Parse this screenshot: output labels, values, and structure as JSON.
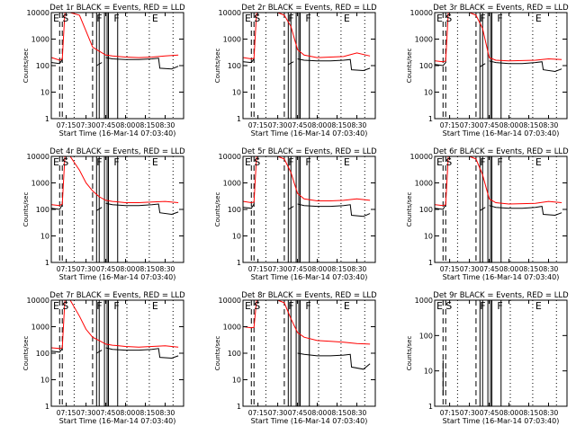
{
  "figure": {
    "note": "Grid of 9 detector light curves"
  },
  "colors": {
    "events": "#000000",
    "lld": "#ff0000",
    "axes": "#000000",
    "background": "#ffffff"
  },
  "chart_data": [
    {
      "type": "line",
      "title": "Det 1r BLACK = Events, RED = LLD",
      "xlabel": "Start Time (16-Mar-14 07:03:40)",
      "ylabel": "Counts/sec",
      "yscale": "log",
      "ylim": [
        1,
        10000
      ],
      "xlim": [
        "07:03:40",
        "08:44:00"
      ],
      "x_tick_labels": [
        "07:15",
        "07:30",
        "07:45",
        "08:00",
        "08:15",
        "08:30"
      ],
      "y_tick_labels": [
        "1",
        "10",
        "100",
        "1000",
        "10000"
      ],
      "markers": [
        "E",
        "S",
        "F",
        "F",
        "E"
      ],
      "series": [
        {
          "color": "black",
          "x": [
            "07:04",
            "07:10",
            "07:12",
            "07:12",
            "07:38",
            "07:38",
            "07:42",
            "07:42",
            "07:45",
            "07:50",
            "08:00",
            "08:10",
            "08:20",
            "08:25",
            "08:26",
            "08:35",
            "08:40"
          ],
          "y": [
            130,
            120,
            170,
            null,
            null,
            100,
            130,
            null,
            200,
            180,
            170,
            170,
            180,
            190,
            80,
            75,
            95
          ]
        },
        {
          "color": "red",
          "x": [
            "07:04",
            "07:10",
            "07:12",
            "07:14",
            "07:18",
            "07:25",
            "07:30",
            "07:35",
            "07:40",
            "07:45",
            "07:50",
            "08:00",
            "08:10",
            "08:20",
            "08:30",
            "08:40"
          ],
          "y": [
            200,
            160,
            180,
            10000,
            10000,
            8000,
            2000,
            500,
            350,
            250,
            230,
            210,
            200,
            210,
            230,
            250
          ]
        }
      ]
    },
    {
      "type": "line",
      "title": "Det 2r BLACK = Events, RED = LLD",
      "xlabel": "Start Time (16-Mar-14 07:03:40)",
      "ylabel": "Counts/sec",
      "yscale": "log",
      "ylim": [
        1,
        10000
      ],
      "xlim": [
        "07:03:40",
        "08:44:00"
      ],
      "x_tick_labels": [
        "07:15",
        "07:30",
        "07:45",
        "08:00",
        "08:15",
        "08:30"
      ],
      "y_tick_labels": [
        "1",
        "10",
        "100",
        "1000",
        "10000"
      ],
      "markers": [
        "E",
        "S",
        "F",
        "F",
        "E"
      ],
      "series": [
        {
          "color": "black",
          "x": [
            "07:04",
            "07:10",
            "07:12",
            "07:12",
            "07:38",
            "07:38",
            "07:42",
            "07:42",
            "07:45",
            "07:50",
            "08:00",
            "08:10",
            "08:20",
            "08:25",
            "08:26",
            "08:35",
            "08:40"
          ],
          "y": [
            140,
            130,
            180,
            null,
            null,
            110,
            140,
            null,
            180,
            160,
            150,
            150,
            160,
            170,
            70,
            65,
            80
          ]
        },
        {
          "color": "red",
          "x": [
            "07:04",
            "07:10",
            "07:12",
            "07:14",
            "07:18",
            "07:25",
            "07:30",
            "07:35",
            "07:40",
            "07:45",
            "07:50",
            "08:00",
            "08:10",
            "08:20",
            "08:30",
            "08:40"
          ],
          "y": [
            200,
            180,
            190,
            10000,
            10000,
            10000,
            10000,
            8000,
            3000,
            400,
            250,
            200,
            210,
            220,
            300,
            230
          ]
        }
      ]
    },
    {
      "type": "line",
      "title": "Det 3r BLACK = Events, RED = LLD",
      "xlabel": "Start Time (16-Mar-14 07:03:40)",
      "ylabel": "Counts/sec",
      "yscale": "log",
      "ylim": [
        1,
        10000
      ],
      "xlim": [
        "07:03:40",
        "08:44:00"
      ],
      "x_tick_labels": [
        "07:15",
        "07:30",
        "07:45",
        "08:00",
        "08:15",
        "08:30"
      ],
      "y_tick_labels": [
        "1",
        "10",
        "100",
        "1000",
        "10000"
      ],
      "markers": [
        "E",
        "S",
        "F",
        "F",
        "E"
      ],
      "series": [
        {
          "color": "black",
          "x": [
            "07:04",
            "07:10",
            "07:12",
            "07:12",
            "07:38",
            "07:38",
            "07:42",
            "07:42",
            "07:45",
            "07:50",
            "08:00",
            "08:10",
            "08:20",
            "08:25",
            "08:26",
            "08:35",
            "08:40"
          ],
          "y": [
            110,
            100,
            130,
            null,
            null,
            90,
            120,
            null,
            150,
            130,
            120,
            120,
            130,
            140,
            70,
            60,
            75
          ]
        },
        {
          "color": "red",
          "x": [
            "07:04",
            "07:10",
            "07:12",
            "07:14",
            "07:18",
            "07:25",
            "07:30",
            "07:35",
            "07:40",
            "07:45",
            "07:50",
            "08:00",
            "08:10",
            "08:20",
            "08:30",
            "08:40"
          ],
          "y": [
            150,
            140,
            150,
            10000,
            10000,
            10000,
            10000,
            8000,
            2500,
            200,
            160,
            150,
            155,
            160,
            180,
            170
          ]
        }
      ]
    },
    {
      "type": "line",
      "title": "Det 4r BLACK = Events, RED = LLD",
      "xlabel": "Start Time (16-Mar-14 07:03:40)",
      "ylabel": "Counts/sec",
      "yscale": "log",
      "ylim": [
        1,
        10000
      ],
      "xlim": [
        "07:03:40",
        "08:44:00"
      ],
      "x_tick_labels": [
        "07:15",
        "07:30",
        "07:45",
        "08:00",
        "08:15",
        "08:30"
      ],
      "y_tick_labels": [
        "1",
        "10",
        "100",
        "1000",
        "10000"
      ],
      "markers": [
        "E",
        "S",
        "F",
        "F",
        "E"
      ],
      "series": [
        {
          "color": "black",
          "x": [
            "07:04",
            "07:10",
            "07:12",
            "07:12",
            "07:38",
            "07:38",
            "07:42",
            "07:42",
            "07:45",
            "07:50",
            "08:00",
            "08:10",
            "08:20",
            "08:25",
            "08:26",
            "08:35",
            "08:40"
          ],
          "y": [
            110,
            100,
            150,
            null,
            null,
            90,
            120,
            null,
            170,
            150,
            140,
            140,
            150,
            160,
            75,
            65,
            80
          ]
        },
        {
          "color": "red",
          "x": [
            "07:04",
            "07:10",
            "07:12",
            "07:14",
            "07:18",
            "07:25",
            "07:30",
            "07:35",
            "07:40",
            "07:45",
            "07:50",
            "08:00",
            "08:10",
            "08:20",
            "08:30",
            "08:40"
          ],
          "y": [
            150,
            140,
            160,
            10000,
            10000,
            3000,
            1000,
            500,
            300,
            220,
            200,
            180,
            180,
            190,
            200,
            180
          ]
        }
      ]
    },
    {
      "type": "line",
      "title": "Det 5r BLACK = Events, RED = LLD",
      "xlabel": "Start Time (16-Mar-14 07:03:40)",
      "ylabel": "Counts/sec",
      "yscale": "log",
      "ylim": [
        1,
        10000
      ],
      "xlim": [
        "07:03:40",
        "08:44:00"
      ],
      "x_tick_labels": [
        "07:15",
        "07:30",
        "07:45",
        "08:00",
        "08:15",
        "08:30"
      ],
      "y_tick_labels": [
        "1",
        "10",
        "100",
        "1000",
        "10000"
      ],
      "markers": [
        "E",
        "S",
        "F",
        "F",
        "E"
      ],
      "series": [
        {
          "color": "black",
          "x": [
            "07:04",
            "07:10",
            "07:12",
            "07:12",
            "07:38",
            "07:38",
            "07:42",
            "07:42",
            "07:45",
            "07:50",
            "08:00",
            "08:10",
            "08:20",
            "08:25",
            "08:26",
            "08:35",
            "08:40"
          ],
          "y": [
            120,
            110,
            160,
            null,
            null,
            100,
            130,
            null,
            160,
            140,
            130,
            130,
            140,
            150,
            60,
            55,
            70
          ]
        },
        {
          "color": "red",
          "x": [
            "07:04",
            "07:10",
            "07:12",
            "07:14",
            "07:18",
            "07:25",
            "07:30",
            "07:35",
            "07:40",
            "07:45",
            "07:50",
            "08:00",
            "08:10",
            "08:20",
            "08:30",
            "08:40"
          ],
          "y": [
            200,
            180,
            190,
            10000,
            10000,
            10000,
            10000,
            8000,
            2500,
            400,
            250,
            210,
            210,
            220,
            250,
            220
          ]
        }
      ]
    },
    {
      "type": "line",
      "title": "Det 6r BLACK = Events, RED = LLD",
      "xlabel": "Start Time (16-Mar-14 07:03:40)",
      "ylabel": "Counts/sec",
      "yscale": "log",
      "ylim": [
        1,
        10000
      ],
      "xlim": [
        "07:03:40",
        "08:44:00"
      ],
      "x_tick_labels": [
        "07:15",
        "07:30",
        "07:45",
        "08:00",
        "08:15",
        "08:30"
      ],
      "y_tick_labels": [
        "1",
        "10",
        "100",
        "1000",
        "10000"
      ],
      "markers": [
        "E",
        "S",
        "F",
        "F",
        "E"
      ],
      "series": [
        {
          "color": "black",
          "x": [
            "07:04",
            "07:10",
            "07:12",
            "07:12",
            "07:38",
            "07:38",
            "07:42",
            "07:42",
            "07:45",
            "07:50",
            "08:00",
            "08:10",
            "08:20",
            "08:25",
            "08:26",
            "08:35",
            "08:40"
          ],
          "y": [
            110,
            100,
            150,
            null,
            null,
            90,
            120,
            null,
            140,
            120,
            110,
            110,
            120,
            130,
            65,
            60,
            75
          ]
        },
        {
          "color": "red",
          "x": [
            "07:04",
            "07:10",
            "07:12",
            "07:14",
            "07:18",
            "07:25",
            "07:30",
            "07:35",
            "07:40",
            "07:45",
            "07:50",
            "08:00",
            "08:10",
            "08:20",
            "08:30",
            "08:40"
          ],
          "y": [
            150,
            140,
            150,
            10000,
            10000,
            10000,
            10000,
            8000,
            2000,
            250,
            180,
            160,
            165,
            170,
            200,
            180
          ]
        }
      ]
    },
    {
      "type": "line",
      "title": "Det 7r BLACK = Events, RED = LLD",
      "xlabel": "Start Time (16-Mar-14 07:03:40)",
      "ylabel": "Counts/sec",
      "yscale": "log",
      "ylim": [
        1,
        10000
      ],
      "xlim": [
        "07:03:40",
        "08:44:00"
      ],
      "x_tick_labels": [
        "07:15",
        "07:30",
        "07:45",
        "08:00",
        "08:15",
        "08:30"
      ],
      "y_tick_labels": [
        "1",
        "10",
        "100",
        "1000",
        "10000"
      ],
      "markers": [
        "E",
        "S",
        "F",
        "F",
        "E"
      ],
      "series": [
        {
          "color": "black",
          "x": [
            "07:04",
            "07:10",
            "07:12",
            "07:12",
            "07:38",
            "07:38",
            "07:42",
            "07:42",
            "07:45",
            "07:50",
            "08:00",
            "08:10",
            "08:20",
            "08:25",
            "08:26",
            "08:35",
            "08:40"
          ],
          "y": [
            120,
            110,
            150,
            null,
            null,
            100,
            130,
            null,
            160,
            140,
            130,
            130,
            140,
            150,
            70,
            65,
            80
          ]
        },
        {
          "color": "red",
          "x": [
            "07:04",
            "07:10",
            "07:12",
            "07:14",
            "07:18",
            "07:25",
            "07:30",
            "07:35",
            "07:40",
            "07:45",
            "07:50",
            "08:00",
            "08:10",
            "08:20",
            "08:30",
            "08:40"
          ],
          "y": [
            160,
            150,
            160,
            10000,
            10000,
            2500,
            800,
            400,
            300,
            220,
            200,
            180,
            170,
            180,
            190,
            170
          ]
        }
      ]
    },
    {
      "type": "line",
      "title": "Det 8r BLACK = Events, RED = LLD",
      "xlabel": "Start Time (16-Mar-14 07:03:40)",
      "ylabel": "Counts/sec",
      "yscale": "log",
      "ylim": [
        1,
        10000
      ],
      "xlim": [
        "07:03:40",
        "08:44:00"
      ],
      "x_tick_labels": [
        "07:15",
        "07:30",
        "07:45",
        "08:00",
        "08:15",
        "08:30"
      ],
      "y_tick_labels": [
        "1",
        "10",
        "100",
        "1000",
        "10000"
      ],
      "markers": [
        "E",
        "S",
        "F",
        "F",
        "E"
      ],
      "series": [
        {
          "color": "black",
          "x": [
            "07:04",
            "07:10",
            "07:12",
            "07:12",
            "07:38",
            "07:38",
            "07:42",
            "07:42",
            "07:45",
            "07:50",
            "08:00",
            "08:10",
            "08:20",
            "08:25",
            "08:26",
            "08:35",
            "08:40"
          ],
          "y": [
            null,
            null,
            null,
            null,
            null,
            null,
            null,
            null,
            100,
            90,
            80,
            80,
            85,
            90,
            30,
            25,
            40
          ]
        },
        {
          "color": "red",
          "x": [
            "07:04",
            "07:10",
            "07:12",
            "07:14",
            "07:18",
            "07:25",
            "07:30",
            "07:35",
            "07:40",
            "07:45",
            "07:50",
            "08:00",
            "08:10",
            "08:20",
            "08:30",
            "08:40"
          ],
          "y": [
            1000,
            900,
            950,
            10000,
            10000,
            10000,
            10000,
            8000,
            2000,
            600,
            400,
            300,
            280,
            260,
            230,
            220
          ]
        }
      ]
    },
    {
      "type": "line",
      "title": "Det 9r BLACK = Events, RED = LLD",
      "xlabel": "Start Time (16-Mar-14 07:03:40)",
      "ylabel": "Counts/sec",
      "yscale": "log",
      "ylim": [
        1,
        1000
      ],
      "xlim": [
        "07:03:40",
        "08:44:00"
      ],
      "x_tick_labels": [
        "07:15",
        "07:30",
        "07:45",
        "08:00",
        "08:15",
        "08:30"
      ],
      "y_tick_labels": [
        "1",
        "10",
        "100",
        "1000"
      ],
      "markers": [
        "E",
        "S",
        "F",
        "F",
        "E"
      ],
      "series": [
        {
          "color": "black",
          "x": [
            "07:10",
            "07:10"
          ],
          "y": [
            2,
            20
          ]
        },
        {
          "color": "red",
          "x": [],
          "y": []
        }
      ]
    }
  ]
}
